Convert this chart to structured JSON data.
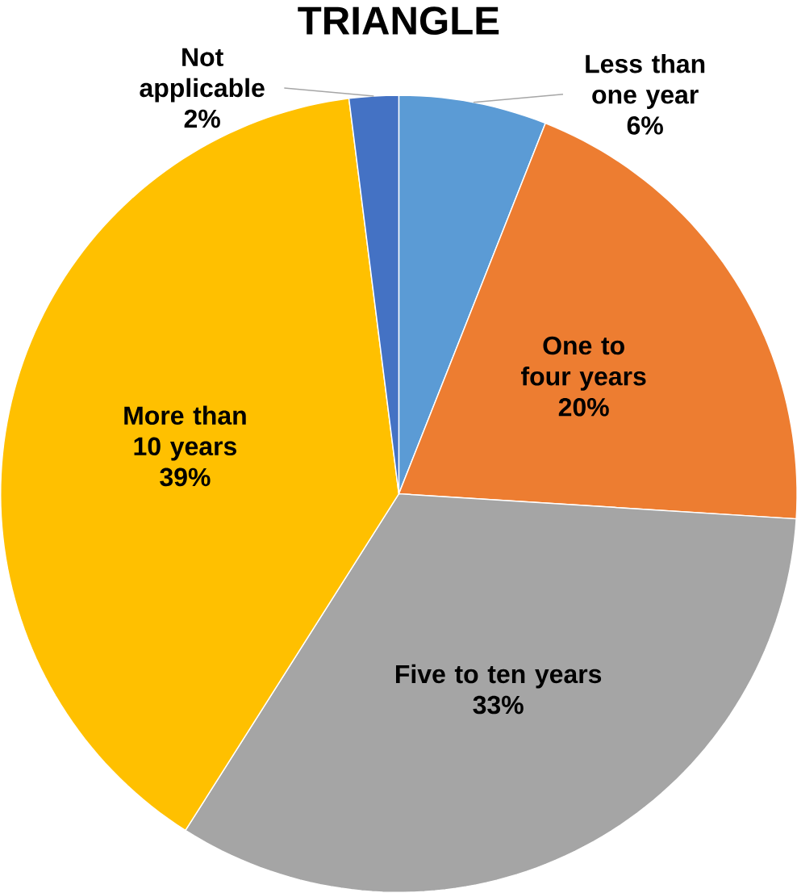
{
  "chart_data": {
    "type": "pie",
    "title": "TRIANGLE",
    "categories": [
      "Less than one year",
      "One to four years",
      "Five to ten years",
      "More than 10 years",
      "Not applicable"
    ],
    "values": [
      6,
      20,
      33,
      39,
      2
    ],
    "value_labels": [
      "6%",
      "20%",
      "33%",
      "39%",
      "2%"
    ],
    "colors": [
      "#5b9bd5",
      "#ed7d31",
      "#a5a5a5",
      "#ffc000",
      "#4472c4"
    ]
  }
}
